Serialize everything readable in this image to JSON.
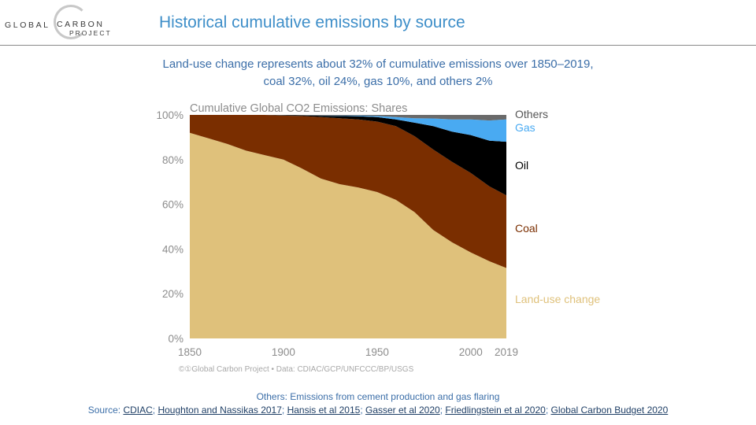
{
  "logo": {
    "word1": "GLOBAL",
    "word2": "CARBON",
    "word3": "PROJECT"
  },
  "header": {
    "title": "Historical cumulative emissions by source"
  },
  "subtitle": {
    "line1": "Land-use change represents about 32% of cumulative emissions over 1850–2019,",
    "line2": "coal 32%, oil 24%, gas 10%, and others 2%"
  },
  "colors": {
    "land_use": "#dfc17b",
    "coal": "#7a2e00",
    "oil": "#000000",
    "gas": "#49aaf2",
    "others": "#6a6a6a",
    "title_blue": "#3f8fc9"
  },
  "chart_data": {
    "type": "area",
    "stacked": true,
    "title": "Cumulative Global CO2 Emissions: Shares",
    "x_ticks": [
      1850,
      1900,
      1950,
      2000,
      2019
    ],
    "y_ticks": [
      "0%",
      "20%",
      "40%",
      "60%",
      "80%",
      "100%"
    ],
    "ylim": [
      0,
      100
    ],
    "xlim": [
      1850,
      2019
    ],
    "grid": false,
    "x": [
      1850,
      1860,
      1870,
      1880,
      1890,
      1900,
      1910,
      1920,
      1930,
      1940,
      1950,
      1960,
      1970,
      1980,
      1990,
      2000,
      2010,
      2019
    ],
    "series": [
      {
        "name": "Land-use change",
        "color": "#dfc17b",
        "values": [
          92,
          89.5,
          87,
          84,
          82,
          80,
          76,
          71.5,
          69,
          67.5,
          65.5,
          62,
          56.5,
          48.5,
          43,
          38.5,
          34.5,
          31.5
        ]
      },
      {
        "name": "Coal",
        "color": "#7a2e00",
        "values": [
          8,
          10.5,
          13,
          16,
          18,
          19.7,
          23.5,
          27.5,
          29.5,
          30.5,
          31.5,
          33,
          34,
          36,
          36,
          35.5,
          33.5,
          32.5
        ]
      },
      {
        "name": "Oil",
        "color": "#000000",
        "values": [
          0,
          0,
          0,
          0,
          0,
          0.2,
          0.3,
          0.6,
          1,
          1.4,
          2,
          3,
          6,
          10.5,
          13.5,
          17,
          20.5,
          24
        ]
      },
      {
        "name": "Gas",
        "color": "#49aaf2",
        "values": [
          0,
          0,
          0,
          0,
          0,
          0,
          0,
          0.1,
          0.2,
          0.3,
          0.5,
          1,
          2,
          3.4,
          5.5,
          7,
          9,
          10
        ]
      },
      {
        "name": "Others",
        "color": "#6a6a6a",
        "values": [
          0,
          0,
          0,
          0,
          0,
          0.1,
          0.2,
          0.3,
          0.3,
          0.3,
          0.5,
          1,
          1.5,
          1.6,
          2,
          2,
          2.5,
          2
        ]
      }
    ],
    "legend": [
      {
        "label": "Others",
        "color": "#555555"
      },
      {
        "label": "Gas",
        "color": "#49aaf2"
      },
      {
        "label": "Oil",
        "color": "#000000"
      },
      {
        "label": "Coal",
        "color": "#7a2e00"
      },
      {
        "label": "Land-use change",
        "color": "#dfc17b"
      }
    ],
    "credit": "©①Global Carbon Project  •  Data: CDIAC/GCP/UNFCCC/BP/USGS"
  },
  "footer": {
    "note": "Others: Emissions from cement production and gas flaring",
    "source_label": "Source: ",
    "links": [
      "CDIAC",
      "Houghton and Nassikas 2017",
      "Hansis et al 2015",
      "Gasser et al 2020",
      "Friedlingstein et al 2020",
      "Global Carbon Budget 2020"
    ],
    "separator": "; "
  }
}
